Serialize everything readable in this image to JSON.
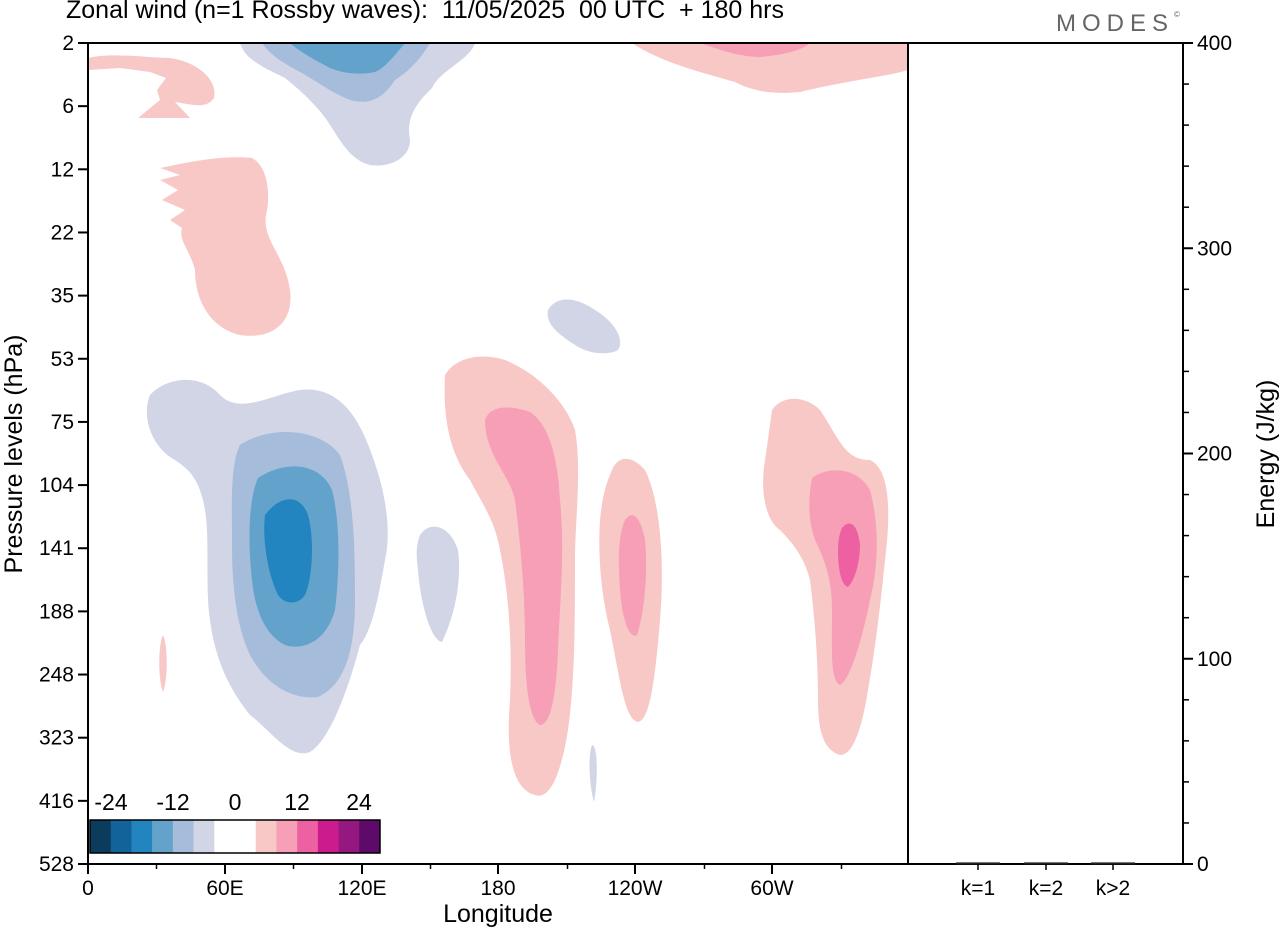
{
  "title": "Zonal wind (n=1 Rossby waves):  11/05/2025  00 UTC  + 180 hrs",
  "logo": "MODES",
  "chart_data": [
    {
      "type": "contour",
      "title": "Zonal wind (n=1 Rossby waves):  11/05/2025  00 UTC  + 180 hrs",
      "xlabel": "Longitude",
      "ylabel": "Pressure levels (hPa)",
      "x_ticks": [
        "0",
        "60E",
        "120E",
        "180",
        "120W",
        "60W"
      ],
      "y_ticks": [
        "2",
        "6",
        "12",
        "22",
        "35",
        "53",
        "75",
        "104",
        "141",
        "188",
        "248",
        "323",
        "416",
        "528"
      ],
      "colorbar": {
        "labels": [
          "-24",
          "-12",
          "0",
          "12",
          "24"
        ],
        "colors": [
          "#0b3c5d",
          "#11639a",
          "#2385c0",
          "#63a2cb",
          "#a6bcdb",
          "#d2d5e6",
          "#ffffff",
          "#ffffff",
          "#f8c8c6",
          "#f79fb6",
          "#ed61a3",
          "#cc1b8d",
          "#94187f",
          "#5d0a6b"
        ]
      },
      "features": [
        {
          "sign": "positive",
          "lon": 27,
          "level": "6",
          "max_level": 1
        },
        {
          "sign": "positive",
          "lon": 38,
          "level": "22",
          "max_level": 1
        },
        {
          "sign": "positive",
          "lon": 33,
          "level": "248",
          "max_level": 1
        },
        {
          "sign": "negative",
          "lon": 116,
          "level": "2",
          "max_level": -3
        },
        {
          "sign": "negative",
          "lon": 88,
          "level": "141",
          "max_level": -4
        },
        {
          "sign": "negative",
          "lon": 154,
          "level": "160",
          "max_level": -1
        },
        {
          "sign": "negative",
          "lon": 215,
          "level": "35",
          "max_level": -1
        },
        {
          "sign": "negative",
          "lon": 221,
          "level": "350",
          "max_level": -1
        },
        {
          "sign": "positive",
          "lon": 193,
          "level": "160",
          "max_level": 2
        },
        {
          "sign": "positive",
          "lon": 238,
          "level": "160",
          "max_level": 2
        },
        {
          "sign": "positive",
          "lon": 317,
          "level": "141",
          "max_level": 3
        },
        {
          "sign": "positive",
          "lon": 300,
          "level": "2",
          "max_level": 3
        }
      ]
    },
    {
      "type": "bar",
      "ylabel": "Energy (J/kg)",
      "ylim": [
        0,
        400
      ],
      "y_ticks": [
        "0",
        "100",
        "200",
        "300",
        "400"
      ],
      "categories": [
        "k=1",
        "k=2",
        "k>2"
      ],
      "values": [
        0.3,
        0.3,
        0.3
      ]
    }
  ]
}
